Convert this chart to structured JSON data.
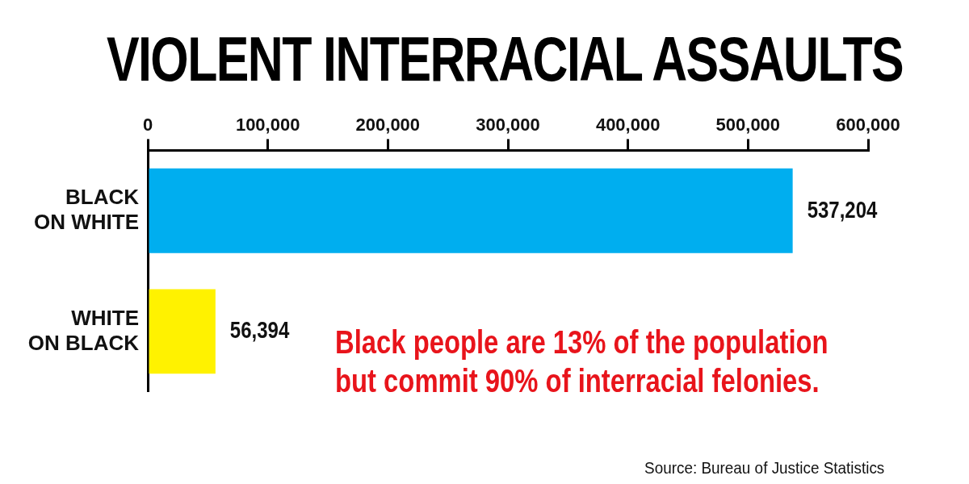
{
  "chart_data": {
    "type": "bar",
    "orientation": "horizontal",
    "title": "VIOLENT INTERRACIAL ASSAULTS",
    "categories": [
      "BLACK ON WHITE",
      "WHITE ON BLACK"
    ],
    "values": [
      537204,
      56394
    ],
    "colors": [
      "#00aeef",
      "#fff200"
    ],
    "xlim": [
      0,
      600000
    ],
    "xticks": [
      0,
      {
        "value": 100000,
        "label": "100,000"
      },
      {
        "value": 200000,
        "label": "200,000"
      },
      {
        "value": 300000,
        "label": "300,000"
      },
      {
        "value": 400000,
        "label": "400,000"
      },
      {
        "value": 500000,
        "label": "500,000"
      },
      {
        "value": 600000,
        "label": "600,000"
      }
    ],
    "grid": false,
    "legend": false,
    "value_labels": [
      "537,204",
      "56,394"
    ],
    "annotations": [
      "Black people are 13% of the population but commit 90% of interracial felonies.",
      "Source: Bureau of Justice Statistics"
    ]
  }
}
